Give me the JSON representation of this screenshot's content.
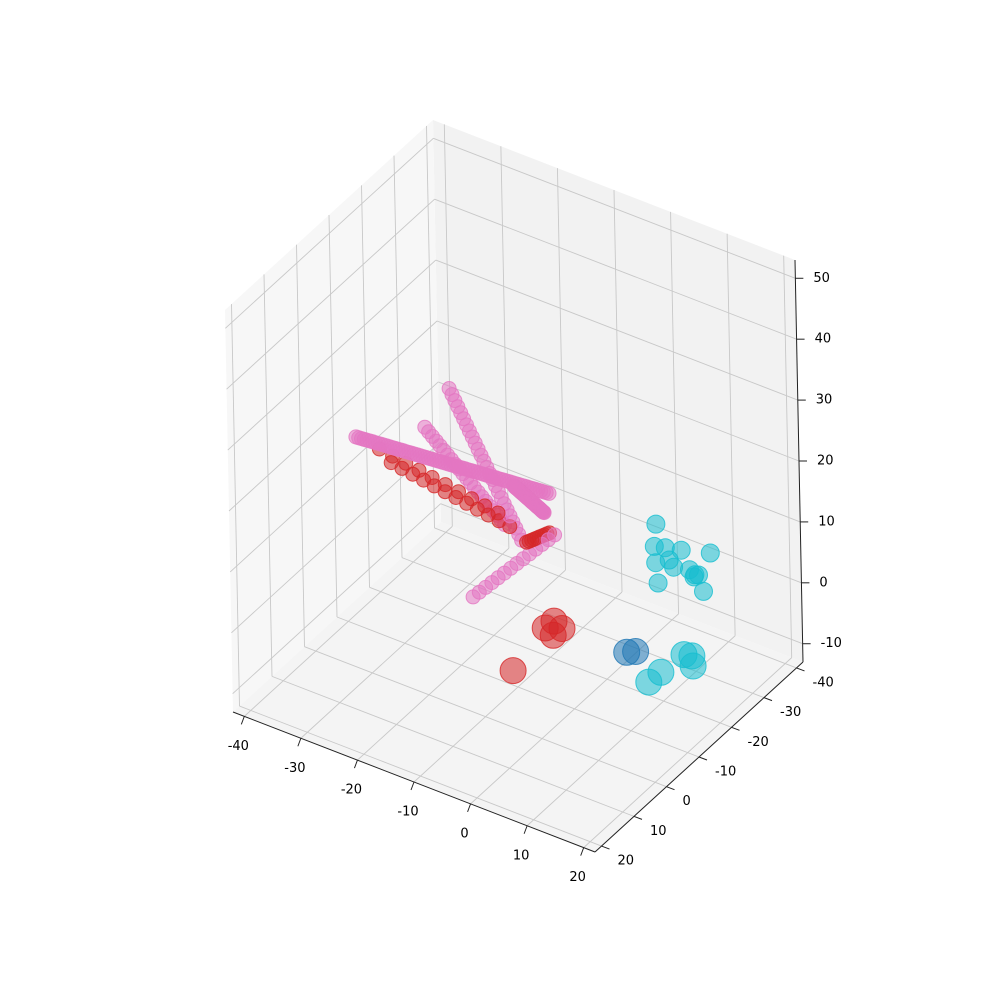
{
  "chart_data": {
    "type": "scatter",
    "projection": "3d",
    "title": "",
    "xlabel": "",
    "ylabel": "",
    "zlabel": "",
    "grid": true,
    "legend": "none",
    "xlim": [
      -42,
      22
    ],
    "ylim": [
      -42,
      22
    ],
    "zlim": [
      -13,
      53
    ],
    "x_ticks": [
      "-40",
      "-30",
      "-20",
      "-10",
      "0",
      "10",
      "20"
    ],
    "y_ticks": [
      "-40",
      "-30",
      "-20",
      "-10",
      "0",
      "10",
      "20"
    ],
    "z_ticks": [
      "-10",
      "0",
      "10",
      "20",
      "30",
      "40",
      "50"
    ],
    "colors": {
      "blue": "#1f77b4",
      "red": "#d62728",
      "pink": "#e377c2",
      "cyan": "#17becf"
    },
    "series": [
      {
        "color": "pink",
        "marker_size": "small",
        "rays": [
          {
            "from": [
              -38,
              -10,
              18
            ],
            "to": [
              8,
              10,
              35
            ],
            "count": 70
          },
          {
            "from": [
              -33,
              -30,
              18
            ],
            "to": [
              0,
              5,
              22
            ],
            "count": 26
          },
          {
            "from": [
              -8,
              20,
              45
            ],
            "to": [
              0,
              10,
              27
            ],
            "count": 22
          },
          {
            "from": [
              0,
              -5,
              18
            ],
            "to": [
              0,
              20,
              20
            ],
            "count": 14
          },
          {
            "from": [
              -10,
              -10,
              20
            ],
            "to": [
              10,
              15,
              35
            ],
            "count": 60
          }
        ]
      },
      {
        "color": "red",
        "marker_size": "small",
        "rays": [
          {
            "from": [
              -20,
              10,
              30
            ],
            "to": [
              -5,
              0,
              20
            ],
            "count": 12
          },
          {
            "from": [
              -25,
              5,
              28
            ],
            "to": [
              -10,
              -5,
              18
            ],
            "count": 10
          },
          {
            "from": [
              -5,
              -5,
              15
            ],
            "to": [
              5,
              5,
              25
            ],
            "count": 10
          }
        ]
      },
      {
        "color": "red",
        "marker_size": "large",
        "points": [
          [
            -1,
            -6,
            3
          ],
          [
            0,
            -4,
            2
          ],
          [
            1,
            -5,
            3
          ],
          [
            -2,
            -5,
            2
          ],
          [
            -12,
            -12,
            -12
          ]
        ]
      },
      {
        "color": "blue",
        "marker_size": "large",
        "points": [
          [
            4,
            -22,
            -8
          ],
          [
            3,
            -21,
            -8
          ]
        ]
      },
      {
        "color": "cyan",
        "marker_size": "medium",
        "points": [
          [
            0,
            -36,
            -5
          ],
          [
            2,
            -35,
            2
          ],
          [
            4,
            -34,
            0
          ],
          [
            6,
            -33,
            4
          ],
          [
            8,
            -32,
            2
          ],
          [
            1,
            -34,
            6
          ],
          [
            5,
            -31,
            3
          ],
          [
            7,
            -35,
            -1
          ],
          [
            9,
            -33,
            1
          ],
          [
            3,
            -30,
            5
          ],
          [
            11,
            -31,
            0
          ],
          [
            6,
            -37,
            -2
          ],
          [
            10,
            -35,
            4
          ],
          [
            2,
            -32,
            1
          ]
        ]
      },
      {
        "color": "cyan",
        "marker_size": "large",
        "points": [
          [
            2,
            -40,
            -18
          ],
          [
            3,
            -41,
            -20
          ],
          [
            4,
            -39,
            -17
          ],
          [
            -2,
            -36,
            -22
          ],
          [
            -1,
            -38,
            -21
          ]
        ]
      }
    ]
  }
}
